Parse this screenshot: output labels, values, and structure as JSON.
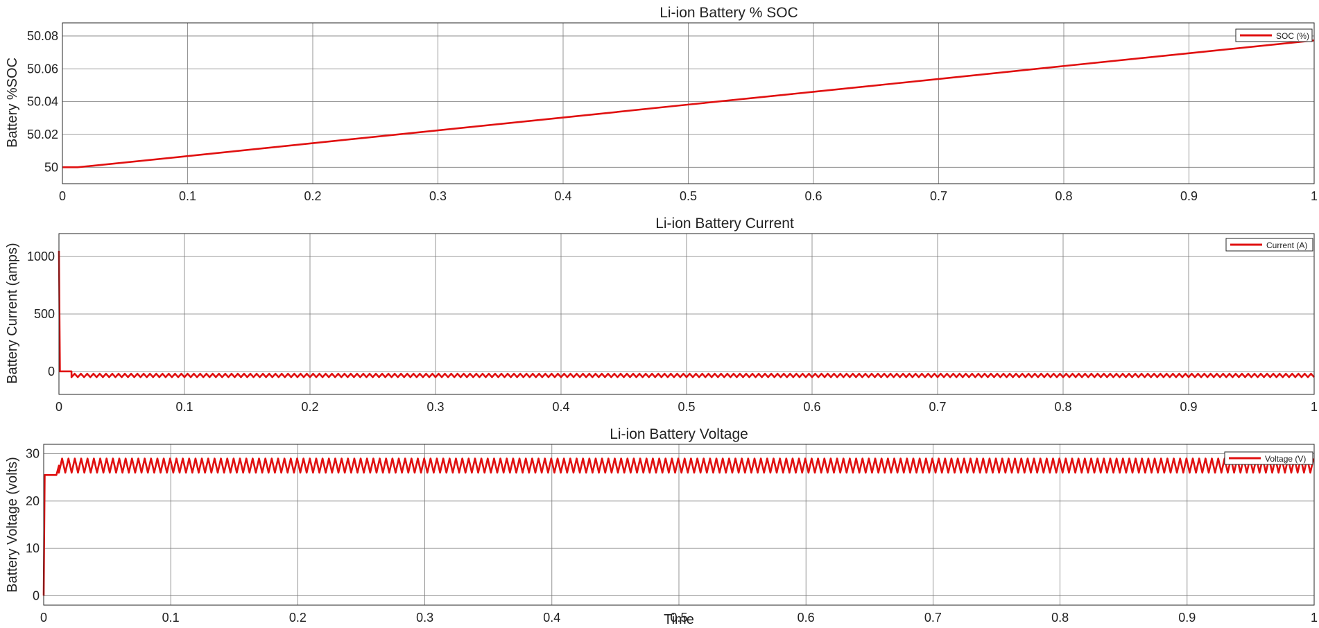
{
  "colors": {
    "series": "#e01010",
    "grid": "#7a7a7a",
    "axes": "#262626",
    "background": "#ffffff"
  },
  "figure": {
    "xlabel": "Time"
  },
  "chart_data": [
    {
      "type": "line",
      "title": "Li-ion Battery % SOC",
      "xlabel": "",
      "ylabel": "Battery %SOC",
      "xlim": [
        0,
        1
      ],
      "ylim": [
        49.99,
        50.088
      ],
      "xticks": [
        0,
        0.1,
        0.2,
        0.3,
        0.4,
        0.5,
        0.6,
        0.7,
        0.8,
        0.9,
        1
      ],
      "xtick_labels": [
        "0",
        "0.1",
        "0.2",
        "0.3",
        "0.4",
        "0.5",
        "0.6",
        "0.7",
        "0.8",
        "0.9",
        "1"
      ],
      "yticks": [
        50,
        50.02,
        50.04,
        50.06,
        50.08
      ],
      "ytick_labels": [
        "50",
        "50.02",
        "50.04",
        "50.06",
        "50.08"
      ],
      "grid": true,
      "legend": "top-right",
      "series": [
        {
          "name": "SOC (%)",
          "color": "#e01010",
          "x": [
            0,
            0.012,
            0.1,
            0.2,
            0.3,
            0.4,
            0.5,
            0.6,
            0.7,
            0.8,
            0.9,
            1.0
          ],
          "y": [
            50.0,
            50.0,
            50.0068,
            50.0147,
            50.0225,
            50.0303,
            50.0382,
            50.046,
            50.0538,
            50.0617,
            50.0695,
            50.0773
          ]
        }
      ]
    },
    {
      "type": "line",
      "title": "Li-ion Battery Current",
      "xlabel": "",
      "ylabel": "Battery Current (amps)",
      "xlim": [
        0,
        1
      ],
      "ylim": [
        -200,
        1200
      ],
      "xticks": [
        0,
        0.1,
        0.2,
        0.3,
        0.4,
        0.5,
        0.6,
        0.7,
        0.8,
        0.9,
        1
      ],
      "xtick_labels": [
        "0",
        "0.1",
        "0.2",
        "0.3",
        "0.4",
        "0.5",
        "0.6",
        "0.7",
        "0.8",
        "0.9",
        "1"
      ],
      "yticks": [
        0,
        500,
        1000
      ],
      "ytick_labels": [
        "0",
        "500",
        "1000"
      ],
      "grid": true,
      "legend": "top-right",
      "series": [
        {
          "name": "Current (A)",
          "color": "#e01010",
          "x": [
            0,
            0.0008,
            0.002,
            0.01,
            1.0
          ],
          "y": [
            1050,
            0,
            0,
            0,
            -45
          ],
          "oscillation": {
            "start": 0.01,
            "end": 1.0,
            "low": -50,
            "high": -20,
            "period": 0.005
          }
        }
      ]
    },
    {
      "type": "line",
      "title": "Li-ion Battery Voltage",
      "xlabel": "Time",
      "ylabel": "Battery Voltage (volts)",
      "xlim": [
        0,
        1
      ],
      "ylim": [
        -2,
        32
      ],
      "xticks": [
        0,
        0.1,
        0.2,
        0.3,
        0.4,
        0.5,
        0.6,
        0.7,
        0.8,
        0.9,
        1
      ],
      "xtick_labels": [
        "0",
        "0.1",
        "0.2",
        "0.3",
        "0.4",
        "0.5",
        "0.6",
        "0.7",
        "0.8",
        "0.9",
        "1"
      ],
      "yticks": [
        0,
        10,
        20,
        30
      ],
      "ytick_labels": [
        "0",
        "10",
        "20",
        "30"
      ],
      "grid": true,
      "legend": "top-right",
      "series": [
        {
          "name": "Voltage (V)",
          "color": "#e01010",
          "x": [
            0,
            0.0008,
            0.01,
            0.012,
            1.0
          ],
          "y": [
            0,
            25.5,
            25.5,
            27.5,
            27.5
          ],
          "oscillation": {
            "start": 0.012,
            "end": 1.0,
            "low": 26.0,
            "high": 29.0,
            "period": 0.005
          }
        }
      ]
    }
  ]
}
